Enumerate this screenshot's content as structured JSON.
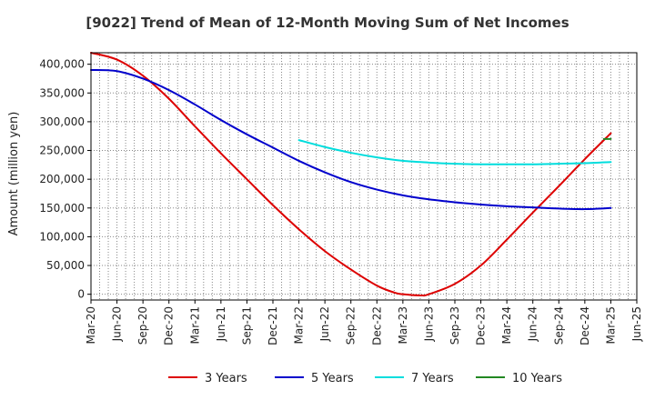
{
  "chart_data": {
    "type": "line",
    "title": "[9022]  Trend of Mean of 12-Month Moving Sum of Net Incomes",
    "xlabel": "",
    "ylabel": "Amount (million yen)",
    "ylim": [
      -10000,
      420000
    ],
    "y_ticks": [
      0,
      50000,
      100000,
      150000,
      200000,
      250000,
      300000,
      350000,
      400000
    ],
    "y_tick_labels": [
      "0",
      "50,000",
      "100,000",
      "150,000",
      "200,000",
      "250,000",
      "300,000",
      "350,000",
      "400,000"
    ],
    "x_range": [
      0,
      63
    ],
    "x_ticks": [
      0,
      3,
      6,
      9,
      12,
      15,
      18,
      21,
      24,
      27,
      30,
      33,
      36,
      39,
      42,
      45,
      48,
      51,
      54,
      57,
      60,
      63
    ],
    "x_tick_labels": [
      "Mar-20",
      "Jun-20",
      "Sep-20",
      "Dec-20",
      "Mar-21",
      "Jun-21",
      "Sep-21",
      "Dec-21",
      "Mar-22",
      "Jun-22",
      "Sep-22",
      "Dec-22",
      "Mar-23",
      "Jun-23",
      "Sep-23",
      "Dec-23",
      "Mar-24",
      "Jun-24",
      "Sep-24",
      "Dec-24",
      "Mar-25",
      "Jun-25"
    ],
    "grid": true,
    "legend_position": "bottom",
    "series": [
      {
        "name": "3 Years",
        "color": "#dd0000",
        "x": [
          0,
          3,
          6,
          9,
          12,
          15,
          18,
          21,
          24,
          27,
          30,
          33,
          35,
          36,
          38,
          39,
          42,
          45,
          48,
          51,
          54,
          57,
          60
        ],
        "values": [
          420000,
          408000,
          380000,
          340000,
          292000,
          245000,
          200000,
          155000,
          113000,
          75000,
          43000,
          15000,
          3000,
          0,
          -2000,
          0,
          18000,
          50000,
          95000,
          142000,
          188000,
          235000,
          280000
        ]
      },
      {
        "name": "5 Years",
        "color": "#0000cc",
        "x": [
          0,
          3,
          6,
          9,
          12,
          15,
          18,
          21,
          24,
          27,
          30,
          33,
          36,
          39,
          42,
          45,
          48,
          51,
          54,
          57,
          60
        ],
        "values": [
          390000,
          388000,
          375000,
          355000,
          330000,
          303000,
          278000,
          255000,
          232000,
          212000,
          195000,
          182000,
          172000,
          165000,
          160000,
          156000,
          153000,
          151000,
          149000,
          148000,
          150000
        ]
      },
      {
        "name": "7 Years",
        "color": "#00dddd",
        "x": [
          24,
          27,
          30,
          33,
          36,
          39,
          42,
          45,
          48,
          51,
          54,
          57,
          60
        ],
        "values": [
          268000,
          256000,
          246000,
          238000,
          232000,
          229000,
          227000,
          226000,
          226000,
          226000,
          227000,
          228000,
          230000
        ]
      },
      {
        "name": "10 Years",
        "color": "#228822",
        "x": [
          59.2,
          60
        ],
        "values": [
          270000,
          270000
        ]
      }
    ]
  }
}
